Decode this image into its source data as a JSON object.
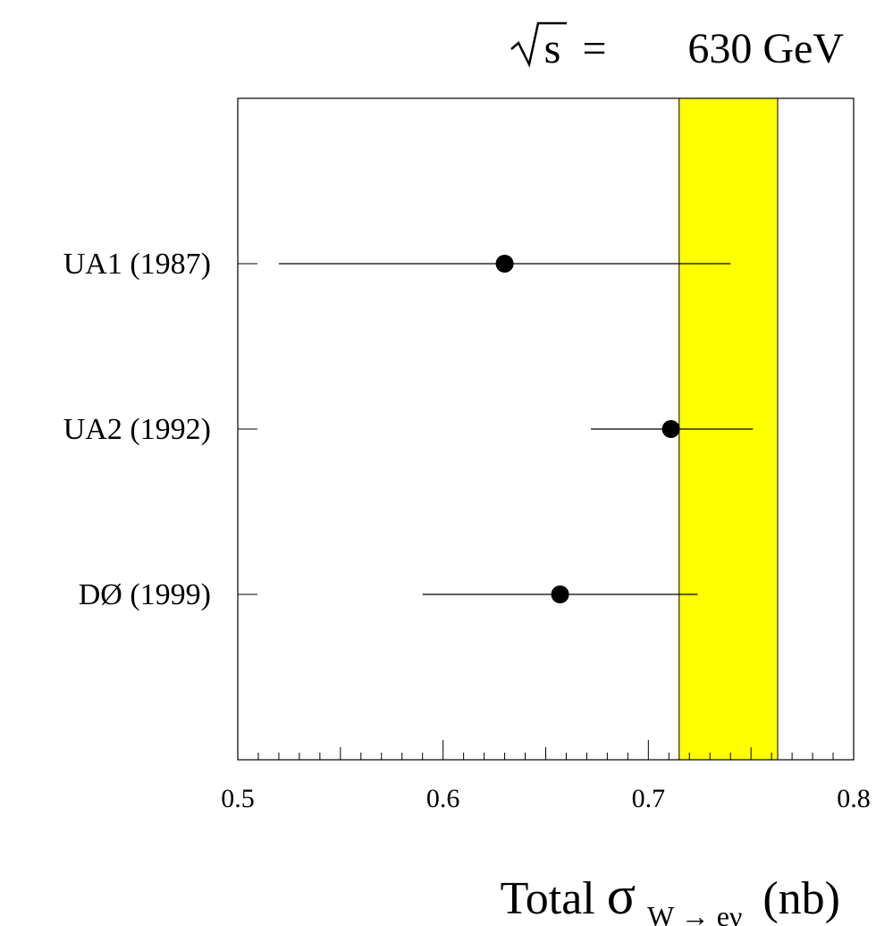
{
  "chart_data": {
    "type": "scatter",
    "title": {
      "lhs": "s",
      "equals": "=",
      "rhs": "630 GeV"
    },
    "xlabel": {
      "prefix": "Total",
      "symbol": "σ",
      "subscript": "W → eν",
      "unit": "(nb)"
    },
    "xlim": [
      0.5,
      0.8
    ],
    "x_ticks": [
      "0.5",
      "0.6",
      "0.7",
      "0.8"
    ],
    "grid": false,
    "band": {
      "from": 0.715,
      "to": 0.763,
      "color": "#ffff00"
    },
    "categories": [
      "UA1 (1987)",
      "UA2 (1992)",
      "DØ (1999)"
    ],
    "values": [
      0.63,
      0.711,
      0.657
    ],
    "errors_low": [
      0.52,
      0.672,
      0.59
    ],
    "errors_high": [
      0.74,
      0.751,
      0.724
    ]
  }
}
